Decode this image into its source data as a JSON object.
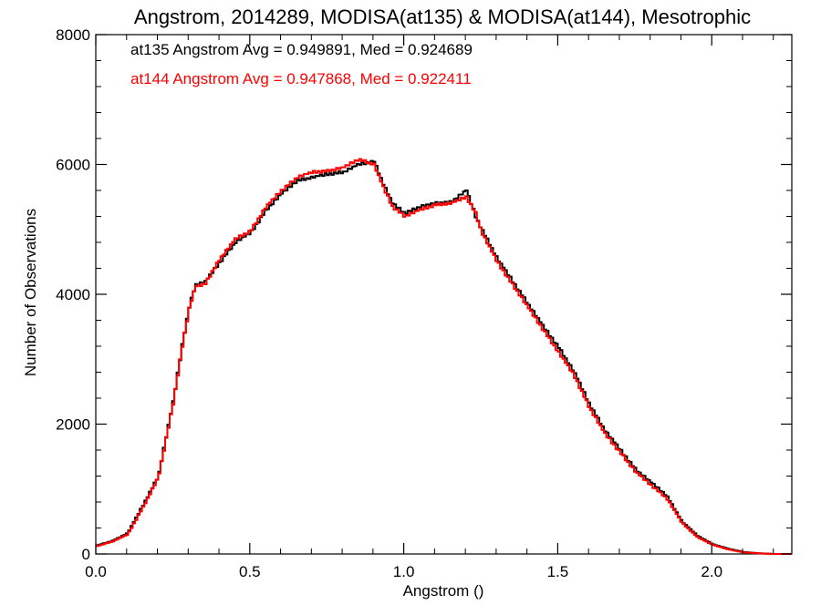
{
  "chart_data": {
    "type": "line",
    "title": "Angstrom, 2014289, MODISA(at135) & MODISA(at144), Mesotrophic",
    "xlabel": "Angstrom ()",
    "ylabel": "Number of Observations",
    "xlim": [
      0.0,
      2.26
    ],
    "ylim": [
      0,
      8000
    ],
    "x_ticks": [
      0.0,
      0.5,
      1.0,
      1.5,
      2.0
    ],
    "x_tick_labels": [
      "0.0",
      "0.5",
      "1.0",
      "1.5",
      "2.0"
    ],
    "y_ticks": [
      0,
      2000,
      4000,
      6000,
      8000
    ],
    "y_tick_labels": [
      "0",
      "2000",
      "4000",
      "6000",
      "8000"
    ],
    "grid": false,
    "legend_position": "top-left",
    "annotations": [
      {
        "text": "at135 Angstrom Avg = 0.949891, Med = 0.924689",
        "color": "#000000"
      },
      {
        "text": "at144 Angstrom Avg = 0.947868, Med = 0.922411",
        "color": "#ff0000"
      }
    ],
    "step": true,
    "series": [
      {
        "color": "#000000",
        "x": [
          0.0,
          0.05,
          0.1,
          0.15,
          0.2,
          0.25,
          0.28,
          0.3,
          0.32,
          0.35,
          0.4,
          0.45,
          0.5,
          0.55,
          0.6,
          0.65,
          0.7,
          0.75,
          0.8,
          0.85,
          0.9,
          0.93,
          0.96,
          1.0,
          1.05,
          1.1,
          1.15,
          1.2,
          1.23,
          1.25,
          1.3,
          1.35,
          1.4,
          1.45,
          1.5,
          1.55,
          1.6,
          1.65,
          1.7,
          1.75,
          1.8,
          1.85,
          1.9,
          1.95,
          2.0,
          2.05,
          2.1,
          2.15,
          2.2,
          2.26
        ],
        "values": [
          130,
          200,
          320,
          750,
          1200,
          2400,
          3300,
          3800,
          4150,
          4180,
          4500,
          4800,
          4950,
          5300,
          5550,
          5750,
          5800,
          5850,
          5880,
          6000,
          6050,
          5700,
          5400,
          5250,
          5350,
          5400,
          5420,
          5600,
          5200,
          5000,
          4550,
          4200,
          3850,
          3500,
          3180,
          2800,
          2300,
          1900,
          1600,
          1300,
          1100,
          900,
          500,
          280,
          150,
          80,
          30,
          10,
          0,
          0
        ]
      },
      {
        "color": "#ff0000",
        "x": [
          0.0,
          0.05,
          0.1,
          0.15,
          0.2,
          0.25,
          0.28,
          0.3,
          0.32,
          0.35,
          0.4,
          0.45,
          0.5,
          0.55,
          0.6,
          0.65,
          0.7,
          0.75,
          0.8,
          0.85,
          0.9,
          0.93,
          0.96,
          1.0,
          1.05,
          1.1,
          1.15,
          1.2,
          1.23,
          1.25,
          1.3,
          1.35,
          1.4,
          1.45,
          1.5,
          1.55,
          1.6,
          1.65,
          1.7,
          1.75,
          1.8,
          1.85,
          1.9,
          1.95,
          2.0,
          2.05,
          2.1,
          2.15,
          2.2,
          2.26
        ],
        "values": [
          120,
          190,
          300,
          720,
          1180,
          2380,
          3280,
          3780,
          4120,
          4150,
          4550,
          4850,
          4980,
          5350,
          5600,
          5800,
          5880,
          5900,
          5950,
          6080,
          6000,
          5650,
          5350,
          5200,
          5300,
          5380,
          5400,
          5500,
          5250,
          4950,
          4500,
          4150,
          3800,
          3450,
          3100,
          2750,
          2250,
          1850,
          1560,
          1260,
          1060,
          860,
          480,
          260,
          140,
          70,
          25,
          8,
          0,
          0
        ]
      }
    ]
  }
}
